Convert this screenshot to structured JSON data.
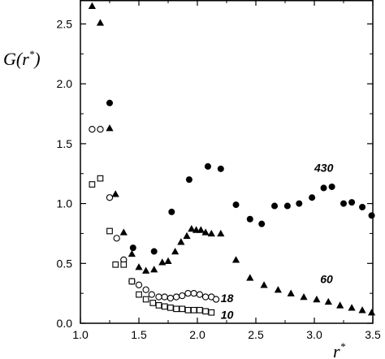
{
  "chart_data": {
    "type": "scatter",
    "title": "",
    "xlabel": "r*",
    "ylabel": "G(r*)",
    "xlim": [
      1.0,
      3.5
    ],
    "ylim": [
      0.0,
      2.7
    ],
    "xticks": [
      "1.0",
      "1.5",
      "2.0",
      "2.5",
      "3.0",
      "3.5"
    ],
    "xtick_values": [
      1.0,
      1.5,
      2.0,
      2.5,
      3.0,
      3.5
    ],
    "yticks": [
      "0.0",
      "0.5",
      "1.0",
      "1.5",
      "2.0",
      "2.5"
    ],
    "ytick_values": [
      0.0,
      0.5,
      1.0,
      1.5,
      2.0,
      2.5
    ],
    "grid": false,
    "series": [
      {
        "name": "430",
        "marker": "filled-circle",
        "x": [
          1.25,
          1.45,
          1.63,
          1.78,
          1.93,
          2.09,
          2.2,
          2.33,
          2.45,
          2.55,
          2.66,
          2.77,
          2.87,
          2.98,
          3.08,
          3.15,
          3.25,
          3.32,
          3.41,
          3.49
        ],
        "y": [
          1.84,
          0.63,
          0.6,
          0.93,
          1.2,
          1.31,
          1.29,
          0.99,
          0.87,
          0.83,
          0.98,
          0.98,
          1.0,
          1.05,
          1.13,
          1.14,
          1.0,
          1.01,
          0.97,
          0.9
        ]
      },
      {
        "name": "60",
        "marker": "filled-triangle",
        "x": [
          1.1,
          1.17,
          1.25,
          1.3,
          1.37,
          1.44,
          1.5,
          1.56,
          1.63,
          1.7,
          1.75,
          1.81,
          1.86,
          1.91,
          1.95,
          1.99,
          2.03,
          2.07,
          2.12,
          2.2,
          2.33,
          2.45,
          2.57,
          2.69,
          2.8,
          2.91,
          3.02,
          3.12,
          3.22,
          3.32,
          3.41,
          3.49
        ],
        "y": [
          2.65,
          2.51,
          1.63,
          1.08,
          0.76,
          0.58,
          0.47,
          0.44,
          0.45,
          0.51,
          0.52,
          0.6,
          0.68,
          0.73,
          0.79,
          0.78,
          0.78,
          0.76,
          0.75,
          0.75,
          0.53,
          0.38,
          0.32,
          0.28,
          0.25,
          0.22,
          0.2,
          0.18,
          0.15,
          0.13,
          0.11,
          0.09
        ]
      },
      {
        "name": "18",
        "marker": "open-circle",
        "x": [
          1.1,
          1.17,
          1.25,
          1.31,
          1.37,
          1.44,
          1.5,
          1.56,
          1.61,
          1.67,
          1.72,
          1.77,
          1.82,
          1.87,
          1.92,
          1.97,
          2.02,
          2.07,
          2.12,
          2.16
        ],
        "y": [
          1.62,
          1.62,
          1.05,
          0.71,
          0.53,
          0.35,
          0.32,
          0.28,
          0.24,
          0.22,
          0.22,
          0.21,
          0.22,
          0.23,
          0.25,
          0.25,
          0.24,
          0.22,
          0.22,
          0.2
        ]
      },
      {
        "name": "10",
        "marker": "open-square",
        "x": [
          1.1,
          1.17,
          1.25,
          1.3,
          1.37,
          1.44,
          1.5,
          1.56,
          1.62,
          1.67,
          1.72,
          1.77,
          1.82,
          1.87,
          1.92,
          1.97,
          2.02,
          2.07,
          2.12
        ],
        "y": [
          1.16,
          1.21,
          0.77,
          0.49,
          0.49,
          0.35,
          0.24,
          0.2,
          0.17,
          0.15,
          0.14,
          0.13,
          0.12,
          0.12,
          0.11,
          0.11,
          0.11,
          0.1,
          0.09
        ]
      }
    ],
    "annotations": [
      {
        "text": "430",
        "x": 3.0,
        "y": 1.3
      },
      {
        "text": "60",
        "x": 3.05,
        "y": 0.37
      },
      {
        "text": "18",
        "x": 2.2,
        "y": 0.21
      },
      {
        "text": "10",
        "x": 2.2,
        "y": 0.07
      }
    ]
  }
}
